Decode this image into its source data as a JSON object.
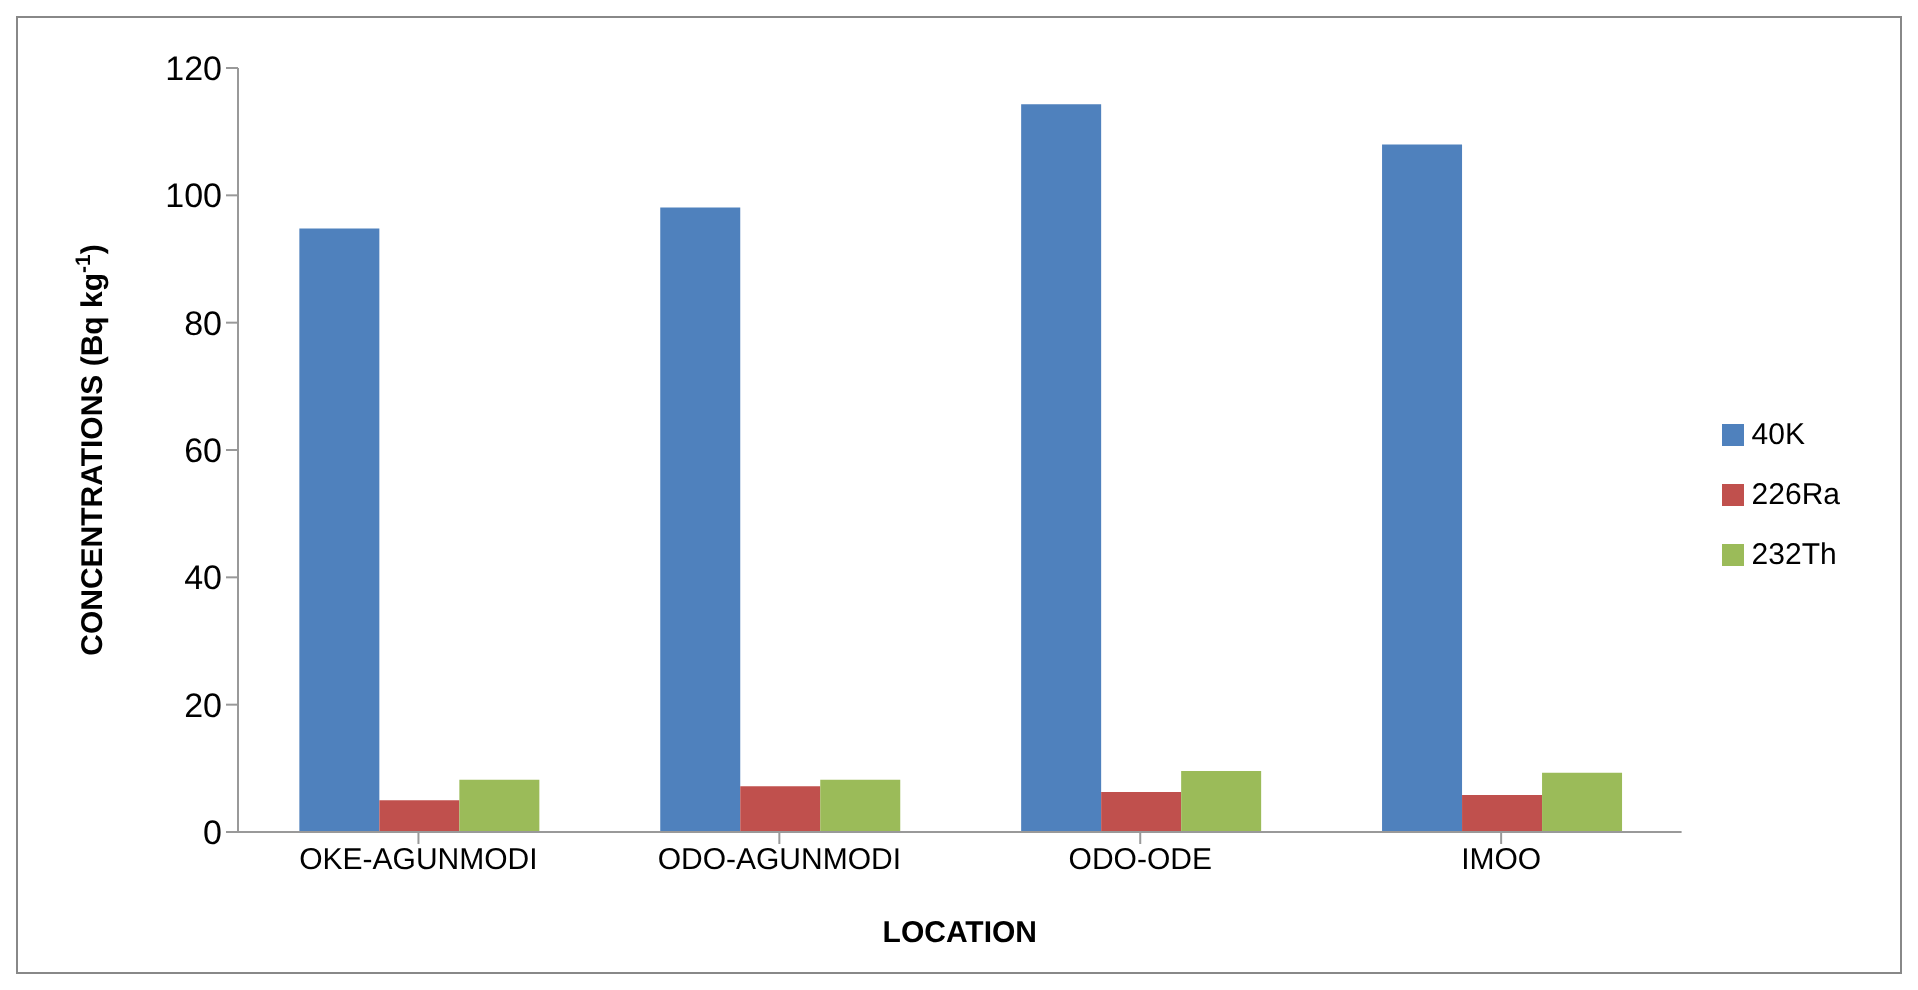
{
  "chart_data": {
    "type": "bar",
    "xlabel": "LOCATION",
    "ylabel": "CONCENTRATIONS (Bq kg$^{-1}$)",
    "categories": [
      "OKE-AGUNMODI",
      "ODO-AGUNMODI",
      "ODO-ODE",
      "IMOO"
    ],
    "series": [
      {
        "name": "40K",
        "color": "#4f81bd",
        "values": [
          94.8,
          98.1,
          114.3,
          108.0
        ]
      },
      {
        "name": "226Ra",
        "color": "#c0504d",
        "values": [
          5.0,
          7.2,
          6.3,
          5.8
        ]
      },
      {
        "name": "232Th",
        "color": "#9bbb59",
        "values": [
          8.2,
          8.2,
          9.6,
          9.3
        ]
      }
    ],
    "ylim": [
      0,
      120
    ],
    "yticks": [
      0,
      20,
      40,
      60,
      80,
      100,
      120
    ],
    "grid": false,
    "legend": "right"
  }
}
